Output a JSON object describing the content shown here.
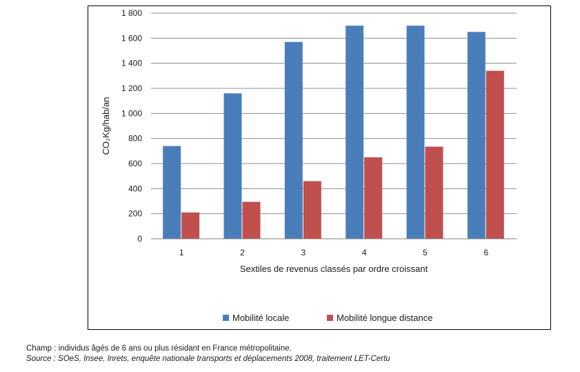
{
  "chart_data": {
    "type": "bar",
    "categories": [
      "1",
      "2",
      "3",
      "4",
      "5",
      "6"
    ],
    "series": [
      {
        "name": "Mobilité locale",
        "color": "#4a7ebb",
        "values": [
          740,
          1160,
          1570,
          1700,
          1700,
          1650
        ]
      },
      {
        "name": "Mobilité longue distance",
        "color": "#c0504d",
        "values": [
          210,
          295,
          460,
          650,
          735,
          1340
        ]
      }
    ],
    "title": "",
    "xlabel": "Sextiles de revenus classés par ordre croissant",
    "ylabel": "CO₂Kg/hab/an",
    "ylim": [
      0,
      1800
    ],
    "yticks": [
      0,
      200,
      400,
      600,
      800,
      1000,
      1200,
      1400,
      1600,
      1800
    ],
    "ytick_labels": [
      "0",
      "200",
      "400",
      "600",
      "800",
      "1 000",
      "1 200",
      "1 400",
      "1 600",
      "1 800"
    ],
    "grid": "horizontal",
    "legend_position": "bottom"
  },
  "notes": {
    "champ": "Champ : individus âgés de 6 ans ou plus résidant en France métropolitaine.",
    "source": "Source : SOeS, Insee, Inrets, enquête nationale transports et déplacements 2008, traitement LET-Certu"
  }
}
